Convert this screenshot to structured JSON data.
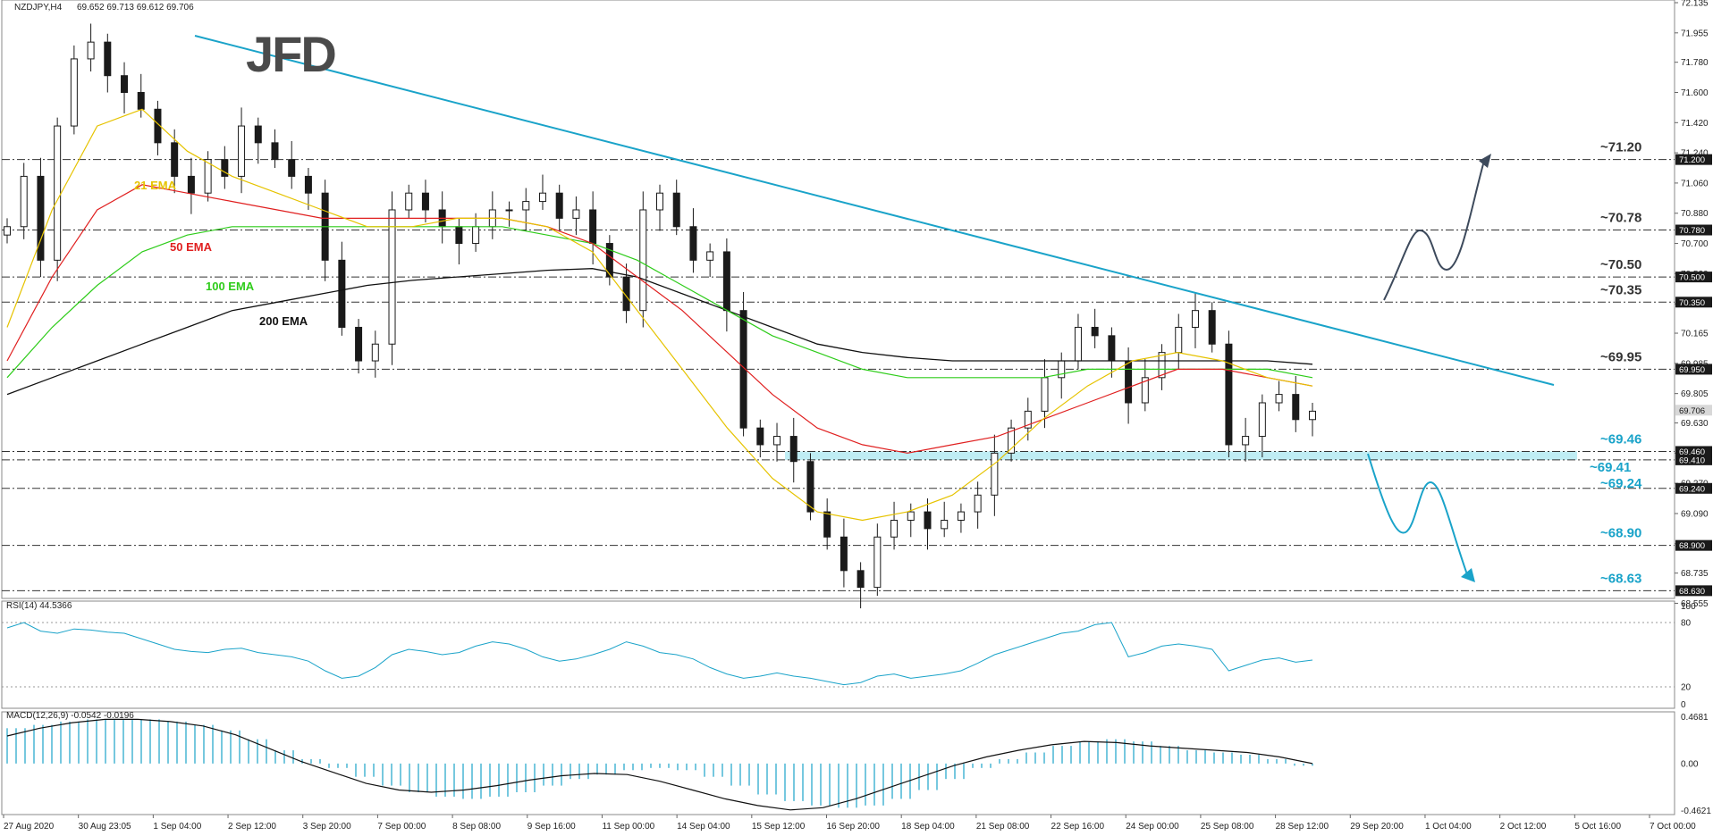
{
  "chart_data": {
    "type": "candlestick",
    "main": {
      "title": "NZDJPY,H4",
      "ohlc_values": "69.652 69.713 69.612 69.706",
      "logo": "JFD",
      "ylim": [
        68.6,
        72.135
      ],
      "y_ticks": [
        "72.135",
        "71.955",
        "71.780",
        "71.600",
        "71.420",
        "71.240",
        "71.060",
        "70.880",
        "70.700",
        "70.520",
        "70.340",
        "70.165",
        "69.985",
        "69.805",
        "69.630",
        "69.450",
        "69.270",
        "69.090",
        "68.910",
        "68.735",
        "68.555"
      ],
      "price_tags": [
        {
          "value": 71.2,
          "label": "71.200"
        },
        {
          "value": 70.78,
          "label": "70.780"
        },
        {
          "value": 70.5,
          "label": "70.500"
        },
        {
          "value": 70.35,
          "label": "70.350"
        },
        {
          "value": 69.95,
          "label": "69.950"
        },
        {
          "value": 69.706,
          "label": "69.706"
        },
        {
          "value": 69.46,
          "label": "69.460"
        },
        {
          "value": 69.41,
          "label": "69.410"
        },
        {
          "value": 69.24,
          "label": "69.240"
        },
        {
          "value": 68.9,
          "label": "68.900"
        },
        {
          "value": 68.63,
          "label": "68.630"
        }
      ],
      "levels": [
        {
          "value": 71.2,
          "label": "~71.20",
          "color": "#333333"
        },
        {
          "value": 70.78,
          "label": "~70.78",
          "color": "#333333"
        },
        {
          "value": 70.5,
          "label": "~70.50",
          "color": "#333333"
        },
        {
          "value": 70.35,
          "label": "~70.35",
          "color": "#333333"
        },
        {
          "value": 69.95,
          "label": "~69.95",
          "color": "#333333"
        },
        {
          "value": 69.46,
          "label": "~69.46",
          "color": "#1aa3c9"
        },
        {
          "value": 69.41,
          "label": "~69.41",
          "color": "#1aa3c9"
        },
        {
          "value": 69.24,
          "label": "~69.24",
          "color": "#1aa3c9"
        },
        {
          "value": 68.9,
          "label": "~68.90",
          "color": "#1aa3c9"
        },
        {
          "value": 68.63,
          "label": "~68.63",
          "color": "#1aa3c9"
        }
      ],
      "support_zone": [
        69.41,
        69.46
      ],
      "ema_labels": [
        {
          "label": "21 EMA",
          "color": "#e6c300"
        },
        {
          "label": "50 EMA",
          "color": "#e02020"
        },
        {
          "label": "100 EMA",
          "color": "#2ecc1a"
        },
        {
          "label": "200 EMA",
          "color": "#111111"
        }
      ],
      "x_labels": [
        "27 Aug 2020",
        "30 Aug 23:05",
        "1 Sep 04:00",
        "2 Sep 12:00",
        "3 Sep 20:00",
        "7 Sep 00:00",
        "8 Sep 08:00",
        "9 Sep 16:00",
        "11 Sep 00:00",
        "14 Sep 04:00",
        "15 Sep 12:00",
        "16 Sep 20:00",
        "18 Sep 04:00",
        "21 Sep 08:00",
        "22 Sep 16:00",
        "24 Sep 00:00",
        "25 Sep 08:00",
        "28 Sep 12:00",
        "29 Sep 20:00",
        "1 Oct 04:00",
        "2 Oct 12:00",
        "5 Oct 16:00",
        "7 Oct 00:00"
      ],
      "close_path": [
        70.8,
        71.1,
        70.6,
        71.4,
        71.8,
        71.9,
        71.7,
        71.6,
        71.5,
        71.3,
        71.1,
        71.0,
        71.2,
        71.1,
        71.4,
        71.3,
        71.2,
        71.1,
        71.0,
        70.6,
        70.2,
        70.0,
        70.1,
        70.9,
        71.0,
        70.9,
        70.8,
        70.7,
        70.8,
        70.9,
        70.9,
        70.95,
        71.0,
        70.85,
        70.9,
        70.7,
        70.5,
        70.3,
        70.9,
        71.0,
        70.8,
        70.6,
        70.65,
        70.3,
        69.6,
        69.5,
        69.55,
        69.4,
        69.1,
        68.95,
        68.75,
        68.65,
        68.95,
        69.05,
        69.1,
        69.0,
        69.05,
        69.1,
        69.2,
        69.45,
        69.6,
        69.7,
        69.9,
        70.0,
        70.2,
        70.15,
        70.0,
        69.75,
        69.9,
        70.05,
        70.2,
        70.3,
        70.1,
        69.5,
        69.55,
        69.75,
        69.8,
        69.65,
        69.7
      ],
      "ema21": [
        70.2,
        70.9,
        71.4,
        71.5,
        71.25,
        71.1,
        71.0,
        70.9,
        70.8,
        70.8,
        70.85,
        70.85,
        70.8,
        70.65,
        70.3,
        69.95,
        69.6,
        69.3,
        69.1,
        69.05,
        69.1,
        69.2,
        69.4,
        69.65,
        69.85,
        70.0,
        70.05,
        70.0,
        69.9,
        69.85
      ],
      "ema50": [
        70.0,
        70.5,
        70.9,
        71.05,
        71.0,
        70.95,
        70.9,
        70.85,
        70.85,
        70.85,
        70.85,
        70.85,
        70.8,
        70.7,
        70.5,
        70.3,
        70.05,
        69.8,
        69.6,
        69.5,
        69.45,
        69.5,
        69.55,
        69.65,
        69.75,
        69.85,
        69.95,
        69.95,
        69.9,
        69.85
      ],
      "ema100": [
        69.9,
        70.2,
        70.45,
        70.65,
        70.75,
        70.8,
        70.8,
        70.8,
        70.8,
        70.8,
        70.8,
        70.8,
        70.75,
        70.7,
        70.6,
        70.45,
        70.3,
        70.15,
        70.05,
        69.95,
        69.9,
        69.9,
        69.9,
        69.9,
        69.95,
        69.95,
        69.95,
        69.95,
        69.95,
        69.9
      ],
      "ema200": [
        69.8,
        69.9,
        70.0,
        70.1,
        70.2,
        70.3,
        70.35,
        70.4,
        70.45,
        70.48,
        70.5,
        70.52,
        70.54,
        70.55,
        70.5,
        70.4,
        70.3,
        70.2,
        70.1,
        70.05,
        70.02,
        70.0,
        70.0,
        70.0,
        70.0,
        70.0,
        70.0,
        70.0,
        70.0,
        69.98
      ]
    },
    "rsi": {
      "label": "RSI(14) 44.5366",
      "ylim": [
        0,
        100
      ],
      "y_ticks": [
        "100",
        "80",
        "20",
        "0"
      ],
      "levels": [
        80,
        20
      ],
      "values": [
        75,
        80,
        72,
        70,
        74,
        73,
        71,
        70,
        65,
        60,
        55,
        53,
        52,
        55,
        56,
        52,
        50,
        48,
        44,
        35,
        28,
        30,
        38,
        50,
        55,
        53,
        50,
        52,
        58,
        62,
        60,
        55,
        48,
        44,
        46,
        50,
        55,
        62,
        58,
        52,
        50,
        46,
        38,
        32,
        28,
        30,
        33,
        30,
        28,
        25,
        22,
        24,
        30,
        32,
        28,
        30,
        32,
        35,
        42,
        50,
        55,
        60,
        65,
        70,
        72,
        78,
        80,
        48,
        52,
        58,
        60,
        58,
        55,
        35,
        40,
        45,
        47,
        43,
        45
      ]
    },
    "macd": {
      "label": "MACD(12,26,9) -0.0542 -0.0196",
      "ylim": [
        -0.4621,
        0.4681
      ],
      "y_ticks": [
        "0.4681",
        "0.00",
        "-0.4621"
      ],
      "hist": [
        0.32,
        0.35,
        0.38,
        0.4,
        0.4,
        0.4,
        0.38,
        0.35,
        0.3,
        0.22,
        0.12,
        0.04,
        -0.04,
        -0.12,
        -0.2,
        -0.26,
        -0.3,
        -0.32,
        -0.3,
        -0.26,
        -0.2,
        -0.14,
        -0.1,
        -0.06,
        -0.04,
        -0.06,
        -0.12,
        -0.2,
        -0.28,
        -0.34,
        -0.38,
        -0.4,
        -0.38,
        -0.32,
        -0.24,
        -0.14,
        -0.04,
        0.04,
        0.1,
        0.16,
        0.2,
        0.22,
        0.2,
        0.16,
        0.12,
        0.1,
        0.08,
        0.04,
        -0.02
      ],
      "signal": [
        0.25,
        0.32,
        0.37,
        0.4,
        0.4,
        0.38,
        0.34,
        0.26,
        0.14,
        0.02,
        -0.08,
        -0.18,
        -0.24,
        -0.26,
        -0.24,
        -0.2,
        -0.15,
        -0.11,
        -0.09,
        -0.1,
        -0.16,
        -0.24,
        -0.32,
        -0.38,
        -0.42,
        -0.4,
        -0.32,
        -0.22,
        -0.12,
        -0.02,
        0.06,
        0.12,
        0.17,
        0.2,
        0.19,
        0.16,
        0.14,
        0.12,
        0.1,
        0.06,
        0.0
      ]
    }
  }
}
